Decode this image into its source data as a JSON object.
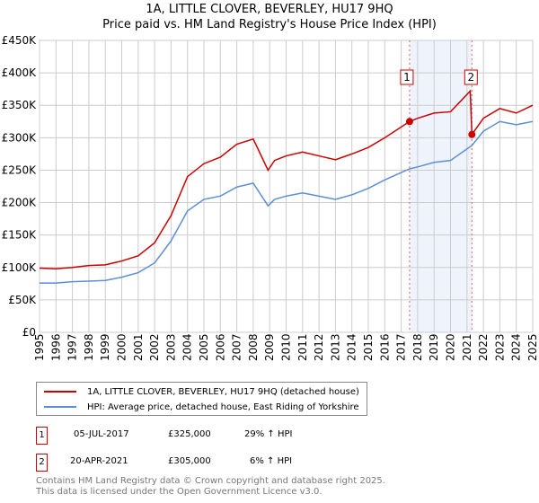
{
  "title": "1A, LITTLE CLOVER, BEVERLEY, HU17 9HQ",
  "subtitle": "Price paid vs. HM Land Registry's House Price Index (HPI)",
  "chart_data": {
    "type": "line",
    "xlim": [
      1995,
      2025
    ],
    "ylim": [
      0,
      450000
    ],
    "yticks": [
      0,
      50000,
      100000,
      150000,
      200000,
      250000,
      300000,
      350000,
      400000,
      450000
    ],
    "ytick_labels": [
      "£0",
      "£50K",
      "£100K",
      "£150K",
      "£200K",
      "£250K",
      "£300K",
      "£350K",
      "£400K",
      "£450K"
    ],
    "xticks": [
      1995,
      1996,
      1997,
      1998,
      1999,
      2000,
      2001,
      2002,
      2003,
      2004,
      2005,
      2006,
      2007,
      2008,
      2009,
      2010,
      2011,
      2012,
      2013,
      2014,
      2015,
      2016,
      2017,
      2018,
      2019,
      2020,
      2021,
      2022,
      2023,
      2024,
      2025
    ],
    "grid": true,
    "shaded_range": [
      2017.51,
      2021.3
    ],
    "series": [
      {
        "name": "1A, LITTLE CLOVER, BEVERLEY, HU17 9HQ (detached house)",
        "color": "#cc0000",
        "x": [
          1995,
          1996,
          1997,
          1998,
          1999,
          2000,
          2001,
          2002,
          2003,
          2004,
          2005,
          2006,
          2007,
          2008,
          2008.9,
          2009.3,
          2010,
          2011,
          2012,
          2013,
          2014,
          2015,
          2016,
          2017.51,
          2018,
          2019,
          2020,
          2021.2,
          2021.3,
          2022,
          2023,
          2024,
          2025
        ],
        "y": [
          99000,
          98000,
          100000,
          103000,
          104000,
          110000,
          118000,
          138000,
          180000,
          240000,
          260000,
          270000,
          290000,
          298000,
          250000,
          265000,
          272000,
          278000,
          272000,
          266000,
          275000,
          285000,
          300000,
          325000,
          330000,
          338000,
          340000,
          372000,
          305000,
          330000,
          345000,
          338000,
          350000
        ]
      },
      {
        "name": "HPI: Average price, detached house, East Riding of Yorkshire",
        "color": "#5b8fd6",
        "x": [
          1995,
          1996,
          1997,
          1998,
          1999,
          2000,
          2001,
          2002,
          2003,
          2004,
          2005,
          2006,
          2007,
          2008,
          2008.9,
          2009.3,
          2010,
          2011,
          2012,
          2013,
          2014,
          2015,
          2016,
          2017.51,
          2018,
          2019,
          2020,
          2021.3,
          2022,
          2023,
          2024,
          2025
        ],
        "y": [
          76000,
          76000,
          78000,
          79000,
          80000,
          85000,
          92000,
          107000,
          141000,
          187000,
          205000,
          210000,
          224000,
          230000,
          195000,
          205000,
          210000,
          215000,
          210000,
          205000,
          212000,
          222000,
          235000,
          252000,
          255000,
          262000,
          265000,
          288000,
          310000,
          325000,
          320000,
          325000
        ]
      }
    ],
    "markers": [
      {
        "label": "1",
        "x": 2017.51,
        "y": 325000
      },
      {
        "label": "2",
        "x": 2021.3,
        "y": 305000
      }
    ]
  },
  "legend": {
    "red": "1A, LITTLE CLOVER, BEVERLEY, HU17 9HQ (detached house)",
    "blue": "HPI: Average price, detached house, East Riding of Yorkshire"
  },
  "sales": [
    {
      "n": "1",
      "date": "05-JUL-2017",
      "price": "£325,000",
      "hpi": "29% ↑ HPI"
    },
    {
      "n": "2",
      "date": "20-APR-2021",
      "price": "£305,000",
      "hpi": "6% ↑ HPI"
    }
  ],
  "footer": [
    "Contains HM Land Registry data © Crown copyright and database right 2025.",
    "This data is licensed under the Open Government Licence v3.0."
  ]
}
